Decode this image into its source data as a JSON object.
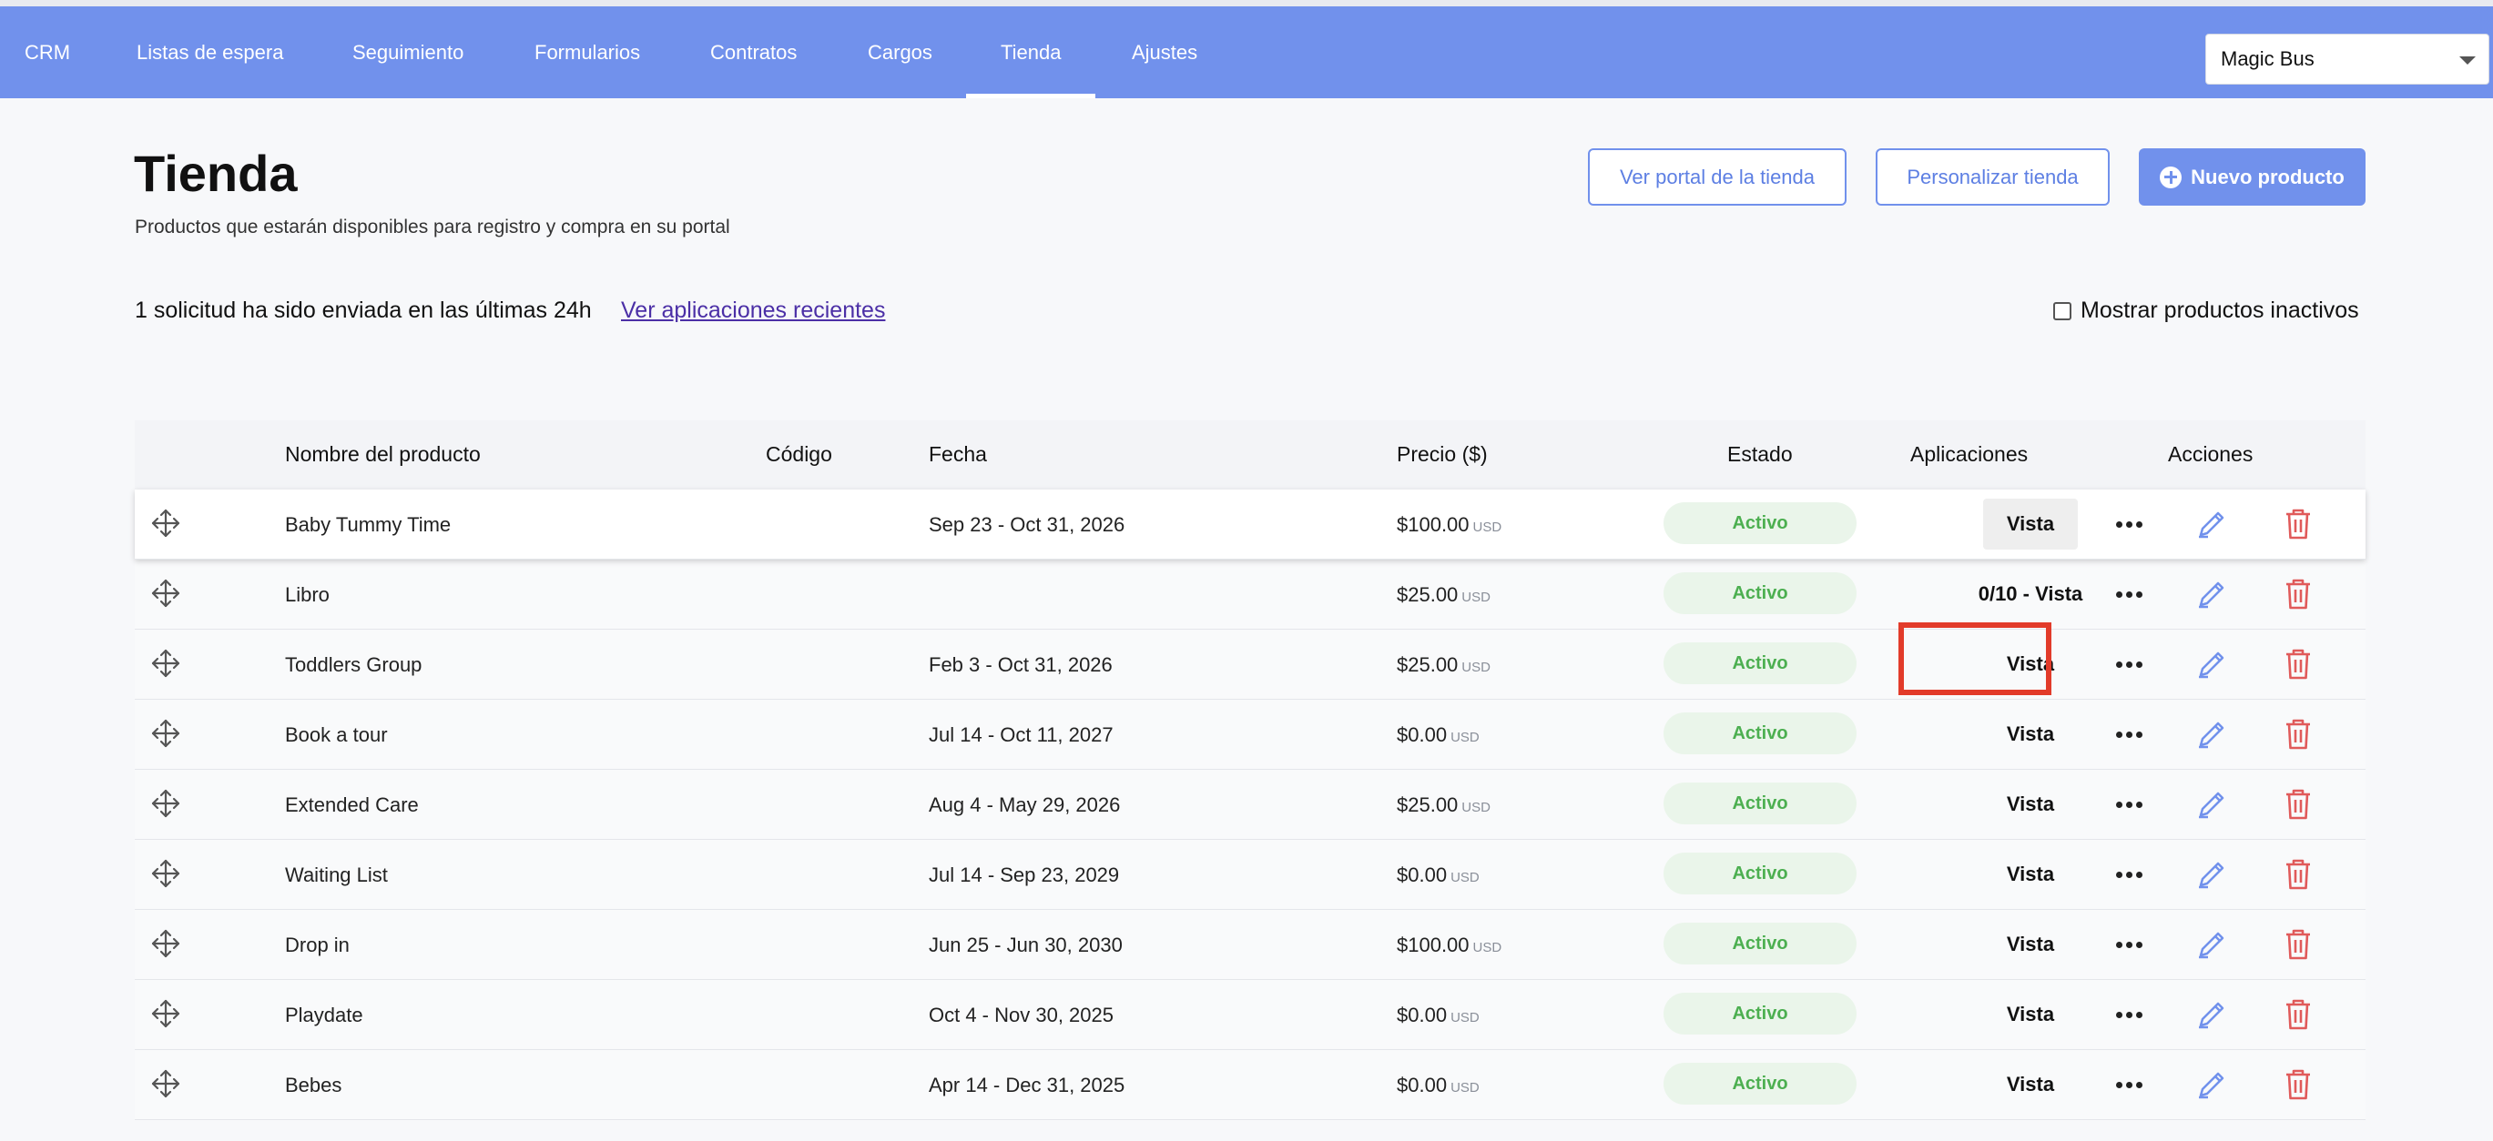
{
  "nav": {
    "items": [
      "CRM",
      "Listas de espera",
      "Seguimiento",
      "Formularios",
      "Contratos",
      "Cargos",
      "Tienda",
      "Ajustes"
    ],
    "active": "Tienda"
  },
  "org_selector": {
    "value": "Magic Bus"
  },
  "header": {
    "title": "Tienda",
    "subtitle": "Productos que estarán disponibles para registro y compra en su portal",
    "btn_portal": "Ver portal de la tienda",
    "btn_customize": "Personalizar tienda",
    "btn_new": "Nuevo producto"
  },
  "notice": {
    "text": "1 solicitud ha sido enviada en las últimas 24h",
    "link": "Ver aplicaciones recientes"
  },
  "toggle_inactive": {
    "label": "Mostrar productos inactivos",
    "checked": false
  },
  "table": {
    "headers": {
      "name": "Nombre del producto",
      "code": "Código",
      "date": "Fecha",
      "price": "Precio ($)",
      "status": "Estado",
      "apps": "Aplicaciones",
      "actions": "Acciones"
    },
    "rows": [
      {
        "name": "Baby Tummy Time",
        "code": "",
        "date": "Sep 23 - Oct 31, 2026",
        "price": "$100.00",
        "currency": "USD",
        "status": "Activo",
        "apps": "Vista"
      },
      {
        "name": "Libro",
        "code": "",
        "date": "",
        "price": "$25.00",
        "currency": "USD",
        "status": "Activo",
        "apps": "0/10 - Vista"
      },
      {
        "name": "Toddlers Group",
        "code": "",
        "date": "Feb 3 - Oct 31, 2026",
        "price": "$25.00",
        "currency": "USD",
        "status": "Activo",
        "apps": "Vista"
      },
      {
        "name": "Book a tour",
        "code": "",
        "date": "Jul 14 - Oct 11, 2027",
        "price": "$0.00",
        "currency": "USD",
        "status": "Activo",
        "apps": "Vista"
      },
      {
        "name": "Extended Care",
        "code": "",
        "date": "Aug 4 - May 29, 2026",
        "price": "$25.00",
        "currency": "USD",
        "status": "Activo",
        "apps": "Vista"
      },
      {
        "name": "Waiting List",
        "code": "",
        "date": "Jul 14 - Sep 23, 2029",
        "price": "$0.00",
        "currency": "USD",
        "status": "Activo",
        "apps": "Vista"
      },
      {
        "name": "Drop in",
        "code": "",
        "date": "Jun 25 - Jun 30, 2030",
        "price": "$100.00",
        "currency": "USD",
        "status": "Activo",
        "apps": "Vista"
      },
      {
        "name": "Playdate",
        "code": "",
        "date": "Oct 4 - Nov 30, 2025",
        "price": "$0.00",
        "currency": "USD",
        "status": "Activo",
        "apps": "Vista"
      },
      {
        "name": "Bebes",
        "code": "",
        "date": "Apr 14 - Dec 31, 2025",
        "price": "$0.00",
        "currency": "USD",
        "status": "Activo",
        "apps": "Vista"
      }
    ]
  },
  "colors": {
    "nav_bg": "#7191ec",
    "accent": "#5d7fe3",
    "status_green": "#4caf50",
    "status_bg": "#eaf5ea",
    "danger": "#e05a5a",
    "highlight": "#e23b2a"
  },
  "icons": {
    "drag": "move-arrows-icon",
    "more": "more-horizontal-icon",
    "edit": "pencil-icon",
    "delete": "trash-icon",
    "new": "plus-circle-icon",
    "select": "chevron-down-icon"
  }
}
